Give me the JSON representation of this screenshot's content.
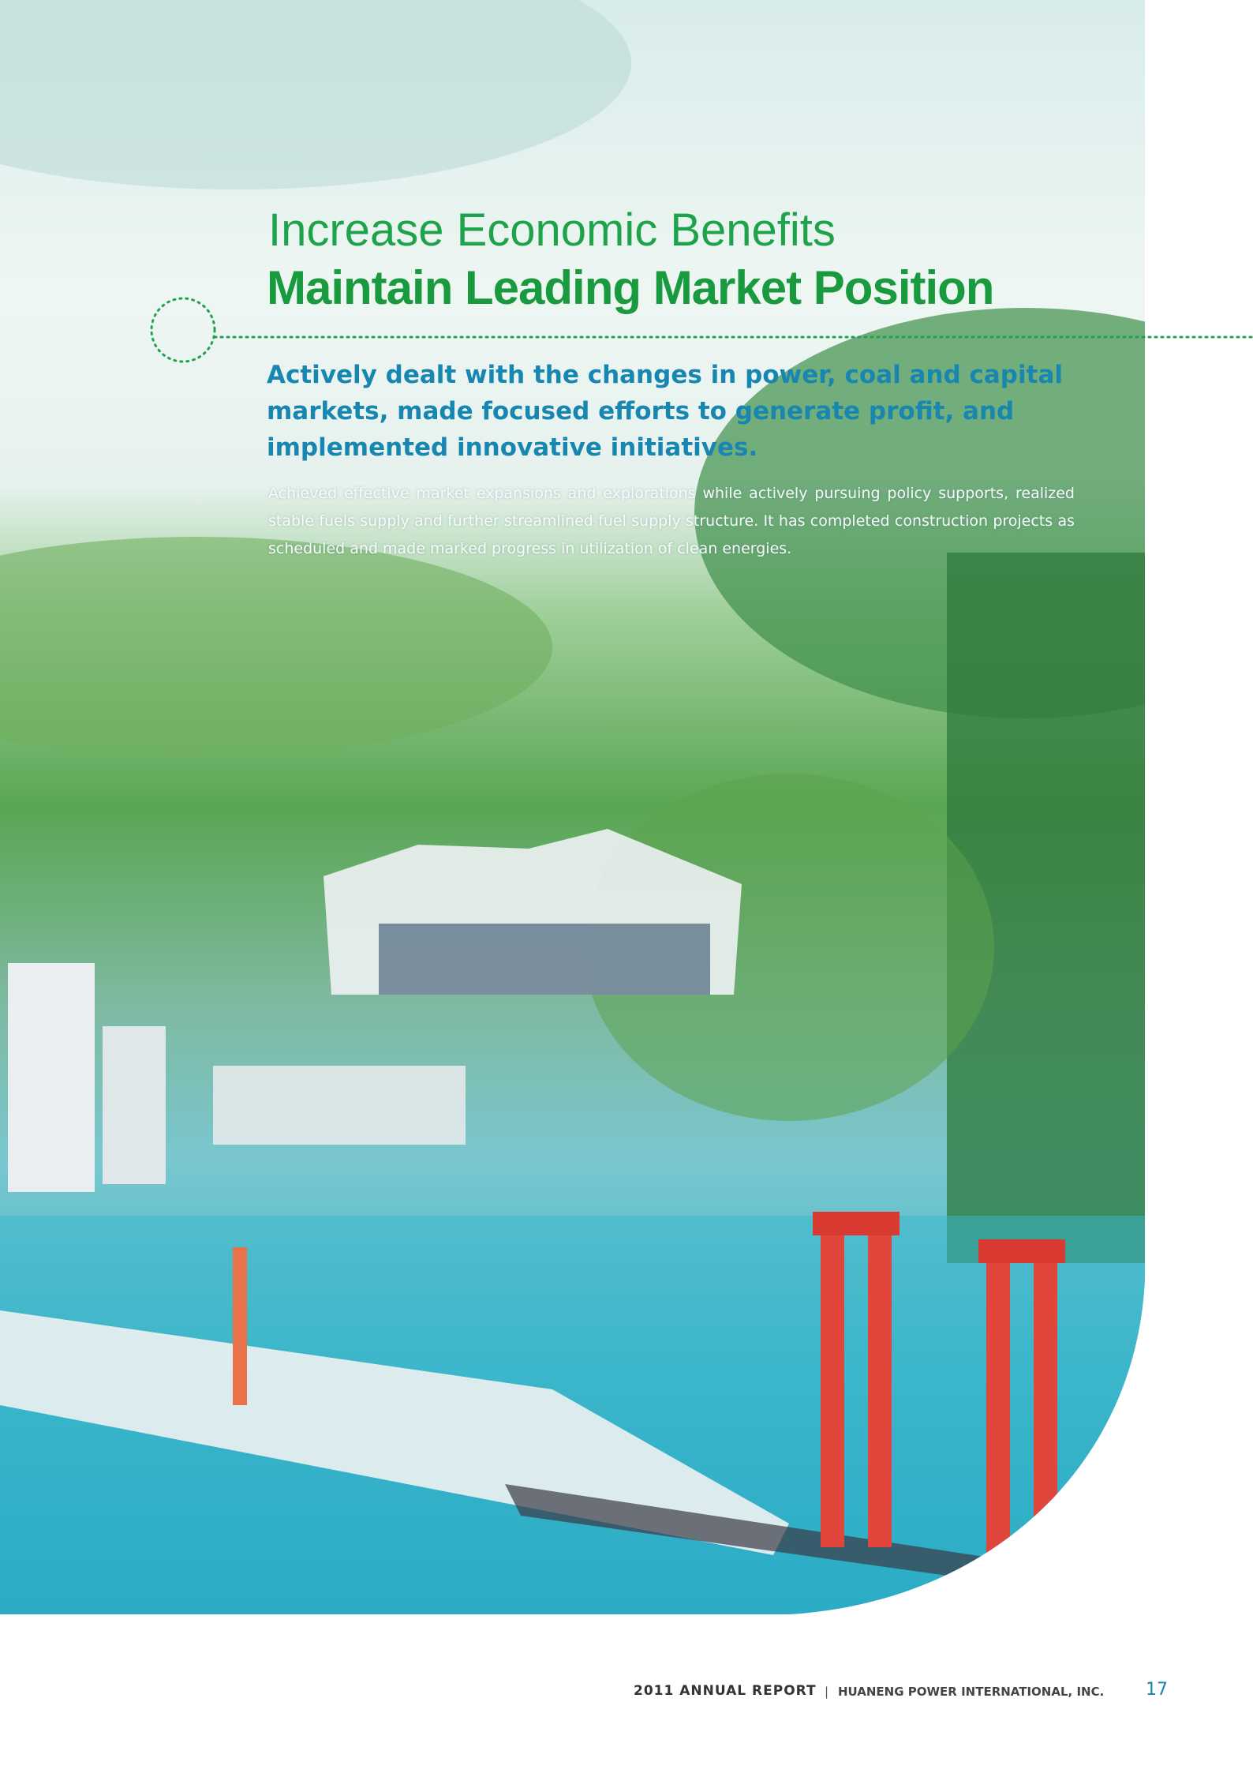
{
  "heading": {
    "line1": "Increase Economic Benefits",
    "line2": "Maintain Leading Market Position"
  },
  "subheading": "Actively dealt with the changes in power, coal and capital markets, made focused efforts to generate profit, and implemented innovative initiatives.",
  "body": "Achieved effective market expansions and explorations while actively pursuing policy supports, realized stable fuels supply and further streamlined fuel supply structure. It has completed construction projects as scheduled and made marked progress in utilization of clean energies.",
  "footer": {
    "report": "2011 ANNUAL REPORT",
    "separator": "|",
    "company": "HUANENG POWER INTERNATIONAL, INC.",
    "page_number": "17"
  }
}
